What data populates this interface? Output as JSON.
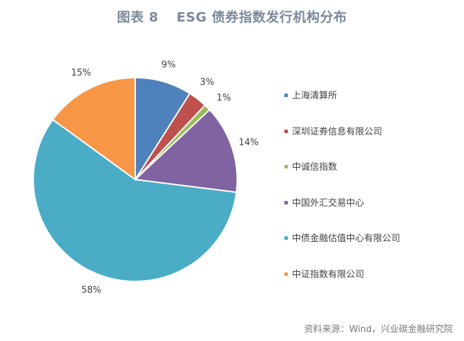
{
  "title": {
    "label": "图表 8",
    "text": "ESG 债券指数发行机构分布"
  },
  "source": "资料来源：Wind，兴业碳金融研究院",
  "chart_data": {
    "type": "pie",
    "slices": [
      {
        "name": "上海清算所",
        "value": 9,
        "label": "9%",
        "color": "#4f81bd"
      },
      {
        "name": "深圳证券信息有限公司",
        "value": 3,
        "label": "3%",
        "color": "#c0504d"
      },
      {
        "name": "中诚信指数",
        "value": 1,
        "label": "1%",
        "color": "#9bbb59"
      },
      {
        "name": "中国外汇交易中心",
        "value": 14,
        "label": "14%",
        "color": "#8064a2"
      },
      {
        "name": "中债金融估值中心有限公司",
        "value": 58,
        "label": "58%",
        "color": "#4bacc6"
      },
      {
        "name": "中证指数有限公司",
        "value": 15,
        "label": "15%",
        "color": "#f79646"
      }
    ],
    "start": "12 o'clock",
    "direction": "clockwise",
    "legend_position": "right"
  }
}
